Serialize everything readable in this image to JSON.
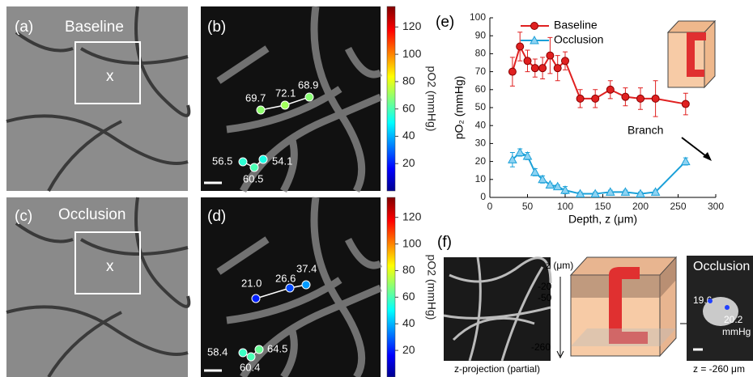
{
  "panels": {
    "a": {
      "label": "(a)",
      "title": "Baseline",
      "marker": "x"
    },
    "b": {
      "label": "(b)",
      "points": {
        "values": [
          69.7,
          72.1,
          68.9,
          56.5,
          60.5,
          54.1
        ],
        "value_labels": [
          "69.7",
          "72.1",
          "68.9",
          "56.5",
          "60.5",
          "54.1"
        ]
      }
    },
    "c": {
      "label": "(c)",
      "title": "Occlusion",
      "marker": "x"
    },
    "d": {
      "label": "(d)",
      "points": {
        "values": [
          21.0,
          26.6,
          37.4,
          58.4,
          60.4,
          64.5
        ],
        "value_labels": [
          "21.0",
          "26.6",
          "37.4",
          "58.4",
          "60.4",
          "64.5"
        ]
      }
    }
  },
  "colorbar": {
    "label": "pO2 (mmHg)",
    "lim": [
      0,
      135
    ],
    "ticks": [
      20,
      40,
      60,
      80,
      100,
      120
    ]
  },
  "chart_data": {
    "type": "line",
    "label": "(e)",
    "xlabel": "Depth, z (μm)",
    "ylabel": "pO₂ (mmHg)",
    "x": [
      30,
      40,
      50,
      60,
      70,
      80,
      90,
      100,
      120,
      140,
      160,
      180,
      200,
      220,
      260
    ],
    "series": [
      {
        "name": "Baseline",
        "color": "#e02020",
        "marker": "circle",
        "values": [
          70,
          84,
          76,
          72,
          72,
          79,
          72,
          76,
          55,
          55,
          60,
          56,
          55,
          55,
          52
        ],
        "errors": [
          8,
          8,
          6,
          5,
          6,
          10,
          7,
          5,
          5,
          5,
          5,
          5,
          6,
          10,
          6
        ]
      },
      {
        "name": "Occlusion",
        "color": "#1aa0d8",
        "marker": "triangle",
        "values": [
          21,
          25,
          23,
          14,
          10,
          7,
          6,
          4,
          2,
          2,
          3,
          3,
          2,
          3,
          20
        ],
        "errors": [
          4,
          2,
          2,
          2,
          2,
          1,
          1,
          2,
          1,
          1,
          1,
          1,
          1,
          1,
          2
        ]
      }
    ],
    "xlim": [
      0,
      300
    ],
    "xticks": [
      0,
      50,
      100,
      150,
      200,
      250,
      300
    ],
    "ylim": [
      0,
      100
    ],
    "yticks": [
      0,
      10,
      20,
      30,
      40,
      50,
      60,
      70,
      80,
      90,
      100
    ],
    "legend": "upper center",
    "annotation": "Branch"
  },
  "panel_f": {
    "label": "(f)",
    "projection_caption": "z-projection (partial)",
    "axis_label": "z (μm)",
    "depths": [
      -20,
      -50,
      -260
    ],
    "inset": {
      "title": "Occlusion",
      "values": [
        19.6,
        20.2
      ],
      "unit": "mmHg",
      "caption": "z = -260 μm"
    }
  }
}
